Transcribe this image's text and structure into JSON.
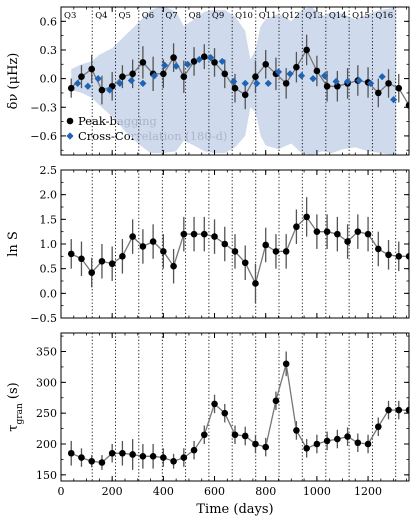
{
  "chart_data": [
    {
      "type": "line",
      "ylabel": "δν (μHz)",
      "ylim": [
        -0.8,
        0.75
      ],
      "yticks": [
        -0.6,
        -0.3,
        0.0,
        0.3,
        0.6
      ],
      "ytick_labels": [
        "−0.6",
        "−0.3",
        "0.0",
        "0.3",
        "0.6"
      ],
      "xlim": [
        0,
        1360
      ],
      "quarter_boundaries": [
        122,
        213,
        304,
        396,
        487,
        578,
        669,
        761,
        852,
        943,
        1035,
        1126,
        1217,
        1308
      ],
      "quarter_labels": [
        "Q3",
        "Q4",
        "Q5",
        "Q6",
        "Q7",
        "Q8",
        "Q9",
        "Q10",
        "Q11",
        "Q12",
        "Q13",
        "Q14",
        "Q15",
        "Q16"
      ],
      "quarter_label_x": [
        42,
        105,
        153,
        210,
        272,
        326,
        381,
        441,
        492,
        554,
        612,
        670,
        732,
        788
      ],
      "band": {
        "x": [
          40,
          80,
          120,
          150,
          200,
          250,
          300,
          350,
          400,
          450,
          480,
          520,
          560,
          600,
          640,
          680,
          720,
          740,
          760,
          780,
          800,
          850,
          900,
          940,
          980,
          1020,
          1060,
          1100,
          1150,
          1200,
          1250,
          1300,
          1310
        ],
        "upper": [
          0.1,
          0.15,
          0.18,
          0.25,
          0.32,
          0.45,
          0.58,
          0.72,
          0.76,
          0.7,
          0.55,
          0.62,
          0.7,
          0.72,
          0.72,
          0.65,
          0.5,
          0.2,
          0.3,
          0.55,
          0.62,
          0.68,
          0.6,
          0.72,
          0.75,
          0.65,
          0.7,
          0.68,
          0.62,
          0.68,
          0.72,
          0.74,
          0.72
        ],
        "lower": [
          -0.12,
          -0.15,
          -0.2,
          -0.28,
          -0.4,
          -0.55,
          -0.68,
          -0.78,
          -0.78,
          -0.76,
          -0.65,
          -0.7,
          -0.76,
          -0.78,
          -0.78,
          -0.72,
          -0.6,
          -0.3,
          -0.35,
          -0.6,
          -0.7,
          -0.74,
          -0.68,
          -0.78,
          -0.8,
          -0.76,
          -0.78,
          -0.74,
          -0.72,
          -0.76,
          -0.78,
          -0.8,
          -0.8
        ]
      },
      "series": [
        {
          "name": "Peak-bagging",
          "marker": "circle",
          "color": "#000000",
          "x": [
            40,
            80,
            120,
            160,
            200,
            240,
            280,
            320,
            360,
            400,
            440,
            480,
            520,
            560,
            600,
            640,
            680,
            720,
            760,
            800,
            840,
            880,
            920,
            960,
            1000,
            1040,
            1080,
            1120,
            1160,
            1200,
            1240,
            1280,
            1320,
            1360
          ],
          "y": [
            -0.1,
            0.02,
            0.1,
            -0.12,
            -0.08,
            0.02,
            0.05,
            0.17,
            0.05,
            0.05,
            0.22,
            0.02,
            0.18,
            0.23,
            0.17,
            0.05,
            -0.1,
            -0.17,
            0.02,
            0.15,
            0.05,
            -0.05,
            0.12,
            0.3,
            0.08,
            -0.08,
            -0.08,
            -0.05,
            -0.02,
            -0.04,
            -0.15,
            -0.05,
            -0.1,
            -0.28
          ],
          "err": [
            0.1,
            0.12,
            0.15,
            0.15,
            0.15,
            0.12,
            0.15,
            0.17,
            0.18,
            0.15,
            0.15,
            0.17,
            0.15,
            0.13,
            0.15,
            0.15,
            0.15,
            0.15,
            0.17,
            0.15,
            0.17,
            0.16,
            0.16,
            0.16,
            0.16,
            0.16,
            0.16,
            0.16,
            0.16,
            0.16,
            0.15,
            0.15,
            0.15,
            0.15
          ]
        },
        {
          "name": "Cross-Correlation (180-d)",
          "marker": "diamond",
          "color": "#1f63b4",
          "x": [
            65,
            105,
            145,
            190,
            230,
            275,
            320,
            365,
            405,
            450,
            495,
            540,
            585,
            630,
            675,
            720,
            765,
            810,
            850,
            895,
            940,
            985,
            1030,
            1075,
            1120,
            1165,
            1210,
            1255,
            1300
          ],
          "y": [
            -0.05,
            -0.08,
            0.0,
            -0.12,
            -0.05,
            -0.02,
            -0.05,
            0.03,
            0.14,
            0.13,
            0.15,
            0.2,
            0.22,
            0.18,
            -0.03,
            -0.05,
            -0.05,
            -0.05,
            0.07,
            0.05,
            0.03,
            0.0,
            0.03,
            -0.03,
            -0.03,
            -0.02,
            -0.05,
            0.02,
            -0.22
          ]
        }
      ]
    },
    {
      "type": "line",
      "ylabel": "ln S",
      "ylim": [
        -0.5,
        2.5
      ],
      "yticks": [
        -0.5,
        0.0,
        0.5,
        1.0,
        1.5,
        2.0,
        2.5
      ],
      "ytick_labels": [
        "−0.5",
        "0.0",
        "0.5",
        "1.0",
        "1.5",
        "2.0",
        "2.5"
      ],
      "xlim": [
        0,
        1360
      ],
      "series": [
        {
          "name": "",
          "x": [
            40,
            80,
            120,
            160,
            200,
            240,
            280,
            320,
            360,
            400,
            440,
            480,
            520,
            560,
            600,
            640,
            680,
            720,
            760,
            800,
            840,
            880,
            920,
            960,
            1000,
            1040,
            1080,
            1120,
            1160,
            1200,
            1240,
            1280,
            1320,
            1360
          ],
          "y": [
            0.8,
            0.7,
            0.42,
            0.65,
            0.6,
            0.75,
            1.15,
            0.95,
            1.05,
            0.85,
            0.55,
            1.2,
            1.2,
            1.2,
            1.15,
            1.0,
            0.85,
            0.62,
            0.2,
            0.98,
            0.85,
            0.85,
            1.35,
            1.55,
            1.25,
            1.25,
            1.2,
            1.05,
            1.25,
            1.2,
            0.9,
            0.78,
            0.75,
            0.75
          ],
          "err": [
            0.3,
            0.35,
            0.3,
            0.35,
            0.35,
            0.35,
            0.35,
            0.35,
            0.35,
            0.35,
            0.35,
            0.35,
            0.35,
            0.35,
            0.35,
            0.35,
            0.35,
            0.35,
            0.4,
            0.35,
            0.35,
            0.35,
            0.35,
            0.4,
            0.35,
            0.35,
            0.35,
            0.35,
            0.35,
            0.35,
            0.35,
            0.3,
            0.3,
            0.3
          ]
        }
      ]
    },
    {
      "type": "line",
      "ylabel": "τ_gran (s)",
      "xlabel": "Time (days)",
      "ylim": [
        140,
        380
      ],
      "yticks": [
        150,
        200,
        250,
        300,
        350
      ],
      "ytick_labels": [
        "150",
        "200",
        "250",
        "300",
        "350"
      ],
      "xlim": [
        0,
        1360
      ],
      "xticks": [
        0,
        200,
        400,
        600,
        800,
        1000,
        1200
      ],
      "xtick_labels": [
        "0",
        "200",
        "400",
        "600",
        "800",
        "1000",
        "1200"
      ],
      "series": [
        {
          "name": "",
          "x": [
            40,
            80,
            120,
            160,
            200,
            240,
            280,
            320,
            360,
            400,
            440,
            480,
            520,
            560,
            600,
            640,
            680,
            720,
            760,
            800,
            840,
            880,
            920,
            960,
            1000,
            1040,
            1080,
            1120,
            1160,
            1200,
            1240,
            1280,
            1320,
            1360
          ],
          "y": [
            185,
            178,
            172,
            170,
            185,
            185,
            183,
            180,
            180,
            178,
            172,
            178,
            190,
            215,
            265,
            250,
            215,
            213,
            200,
            195,
            270,
            330,
            222,
            193,
            200,
            205,
            208,
            212,
            202,
            200,
            228,
            255,
            255,
            255
          ],
          "err": [
            20,
            15,
            10,
            12,
            15,
            20,
            25,
            20,
            20,
            15,
            12,
            15,
            15,
            15,
            15,
            15,
            15,
            15,
            15,
            15,
            15,
            20,
            15,
            15,
            15,
            15,
            15,
            15,
            15,
            15,
            15,
            15,
            15,
            15
          ]
        }
      ]
    }
  ]
}
